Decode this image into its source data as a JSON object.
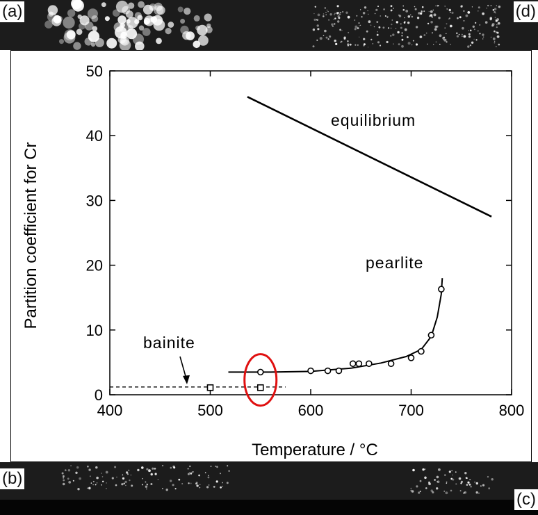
{
  "panels": {
    "a": "(a)",
    "b": "(b)",
    "c": "(c)",
    "d": "(d)"
  },
  "chart_data": {
    "type": "scatter",
    "xlabel": "Temperature / °C",
    "ylabel": "Partition coefficient for Cr",
    "xlim": [
      400,
      800
    ],
    "ylim": [
      0,
      50
    ],
    "x_ticks": [
      400,
      500,
      600,
      700,
      800
    ],
    "y_ticks": [
      0,
      10,
      20,
      30,
      40,
      50
    ],
    "series": [
      {
        "name": "equilibrium",
        "kind": "line",
        "points": [
          [
            537,
            46
          ],
          [
            780,
            27.5
          ]
        ]
      },
      {
        "name": "pearlite",
        "kind": "points-with-fit",
        "points": [
          [
            550,
            3.5
          ],
          [
            600,
            3.7
          ],
          [
            617,
            3.7
          ],
          [
            628,
            3.7
          ],
          [
            642,
            4.8
          ],
          [
            648,
            4.8
          ],
          [
            658,
            4.8
          ],
          [
            680,
            4.8
          ],
          [
            700,
            5.7
          ],
          [
            710,
            6.7
          ],
          [
            720,
            9.2
          ],
          [
            730,
            16.3
          ]
        ],
        "fit": [
          [
            518,
            3.5
          ],
          [
            560,
            3.5
          ],
          [
            600,
            3.6
          ],
          [
            640,
            4.1
          ],
          [
            670,
            4.9
          ],
          [
            695,
            5.9
          ],
          [
            710,
            7.0
          ],
          [
            720,
            9.0
          ],
          [
            726,
            12.0
          ],
          [
            730,
            15.5
          ],
          [
            731,
            18.0
          ]
        ]
      },
      {
        "name": "bainite",
        "kind": "points-with-dashed-line",
        "points": [
          [
            500,
            1.1
          ],
          [
            550,
            1.1
          ]
        ],
        "line": [
          [
            400,
            1.2
          ],
          [
            575,
            1.2
          ]
        ]
      }
    ],
    "annotations": [
      {
        "text": "equilibrium"
      },
      {
        "text": "pearlite"
      },
      {
        "text": "bainite"
      }
    ],
    "highlight": {
      "shape": "ellipse",
      "color": "#e01010",
      "center": [
        550,
        2.3
      ]
    },
    "grid": false
  }
}
